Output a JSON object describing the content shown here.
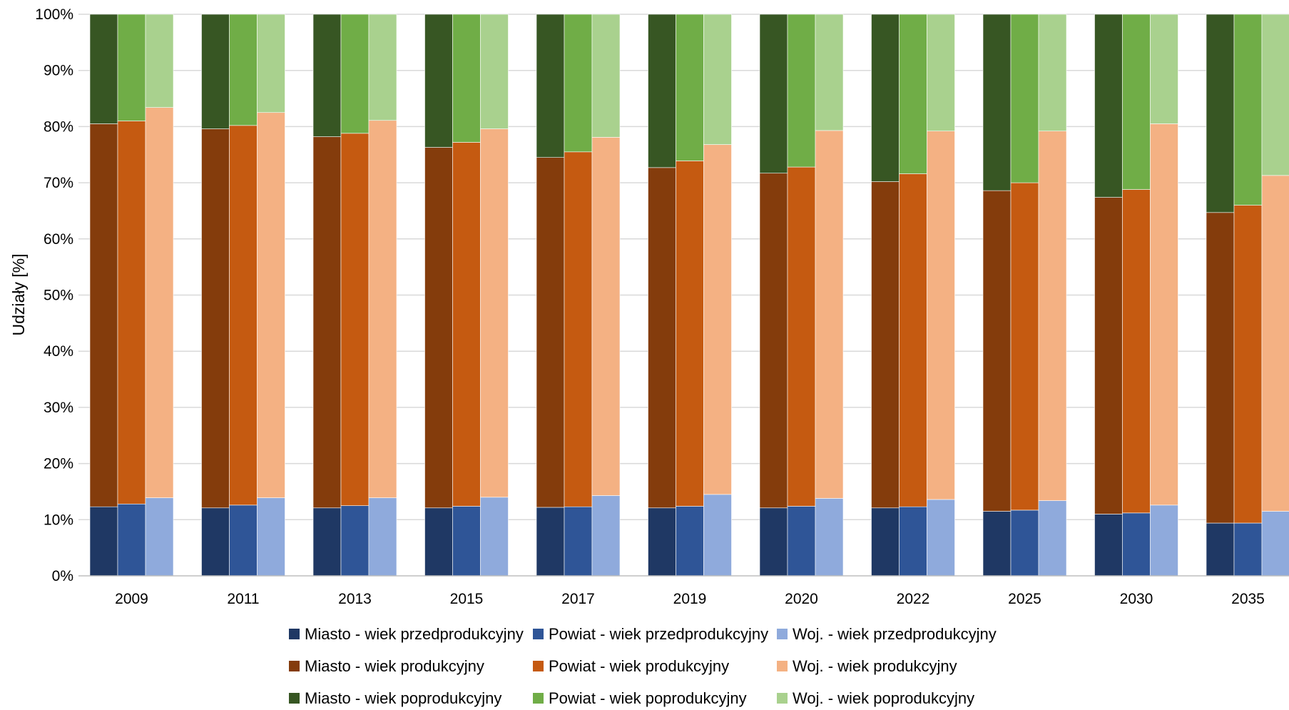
{
  "chart_data": {
    "type": "bar",
    "stacked": "percent",
    "title": "",
    "xlabel": "",
    "ylabel": "Udziały [%]",
    "ylim": [
      0,
      100
    ],
    "yticks": [
      "0%",
      "10%",
      "20%",
      "30%",
      "40%",
      "50%",
      "60%",
      "70%",
      "80%",
      "90%",
      "100%"
    ],
    "grid": true,
    "legend_position": "bottom",
    "categories": [
      "2009",
      "2011",
      "2013",
      "2015",
      "2017",
      "2019",
      "2020",
      "2022",
      "2025",
      "2030",
      "2035"
    ],
    "groups": [
      {
        "name": "Miasto",
        "segments": [
          {
            "name": "Miasto - wiek przedprodukcyjny",
            "color": "#1f3864",
            "values": [
              12.3,
              12.1,
              12.1,
              12.1,
              12.2,
              12.1,
              12.1,
              12.1,
              11.5,
              11.0,
              9.4
            ]
          },
          {
            "name": "Miasto - wiek produkcyjny",
            "color": "#843c0c",
            "values": [
              68.2,
              67.5,
              66.1,
              64.2,
              62.3,
              60.6,
              59.6,
              58.1,
              57.1,
              56.4,
              55.3
            ]
          },
          {
            "name": "Miasto - wiek poprodukcyjny",
            "color": "#375623",
            "values": [
              19.5,
              20.4,
              21.8,
              23.7,
              25.5,
              27.3,
              28.3,
              29.8,
              31.4,
              32.6,
              35.3
            ]
          }
        ]
      },
      {
        "name": "Powiat",
        "segments": [
          {
            "name": "Powiat - wiek przedprodukcyjny",
            "color": "#2f5597",
            "values": [
              12.8,
              12.6,
              12.5,
              12.4,
              12.3,
              12.4,
              12.4,
              12.3,
              11.7,
              11.2,
              9.4
            ]
          },
          {
            "name": "Powiat - wiek produkcyjny",
            "color": "#c55a11",
            "values": [
              68.2,
              67.6,
              66.3,
              64.8,
              63.2,
              61.5,
              60.4,
              59.3,
              58.3,
              57.6,
              56.6
            ]
          },
          {
            "name": "Powiat - wiek poprodukcyjny",
            "color": "#70ad47",
            "values": [
              19.0,
              19.8,
              21.2,
              22.8,
              24.5,
              26.1,
              27.2,
              28.4,
              30.0,
              31.2,
              34.0
            ]
          }
        ]
      },
      {
        "name": "Woj.",
        "segments": [
          {
            "name": "Woj. - wiek przedprodukcyjny",
            "color": "#8faadc",
            "values": [
              13.9,
              13.9,
              13.9,
              14.0,
              14.3,
              14.5,
              13.8,
              13.6,
              13.4,
              12.6,
              11.5
            ]
          },
          {
            "name": "Woj. - wiek produkcyjny",
            "color": "#f4b183",
            "values": [
              69.5,
              68.6,
              67.2,
              65.6,
              63.8,
              62.3,
              65.5,
              65.6,
              65.8,
              67.9,
              59.8
            ]
          },
          {
            "name": "Woj. - wiek poprodukcyjny",
            "color": "#a9d18e",
            "values": [
              16.6,
              17.5,
              18.9,
              20.4,
              21.9,
              23.2,
              20.7,
              20.8,
              20.8,
              19.5,
              28.7
            ]
          }
        ]
      }
    ]
  }
}
